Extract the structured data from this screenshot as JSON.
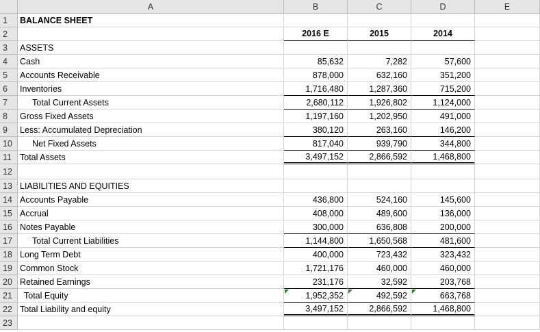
{
  "columns": [
    "A",
    "B",
    "C",
    "D",
    "E"
  ],
  "rows": [
    {
      "number": "1",
      "label": "BALANCE SHEET"
    },
    {
      "number": "2",
      "values": [
        "2016 E",
        "2015",
        "2014"
      ]
    },
    {
      "number": "3",
      "label": "ASSETS"
    },
    {
      "number": "4",
      "label": "Cash",
      "values": [
        "85,632",
        "7,282",
        "57,600"
      ]
    },
    {
      "number": "5",
      "label": "Accounts Receivable",
      "values": [
        "878,000",
        "632,160",
        "351,200"
      ]
    },
    {
      "number": "6",
      "label": "Inventories",
      "values": [
        "1,716,480",
        "1,287,360",
        "715,200"
      ]
    },
    {
      "number": "7",
      "label": "Total Current Assets",
      "values": [
        "2,680,112",
        "1,926,802",
        "1,124,000"
      ]
    },
    {
      "number": "8",
      "label": "Gross Fixed Assets",
      "values": [
        "1,197,160",
        "1,202,950",
        "491,000"
      ]
    },
    {
      "number": "9",
      "label": "Less: Accumulated Depreciation",
      "values": [
        "380,120",
        "263,160",
        "146,200"
      ]
    },
    {
      "number": "10",
      "label": "Net Fixed Assets",
      "values": [
        "817,040",
        "939,790",
        "344,800"
      ]
    },
    {
      "number": "11",
      "label": "Total Assets",
      "values": [
        "3,497,152",
        "2,866,592",
        "1,468,800"
      ]
    },
    {
      "number": "12"
    },
    {
      "number": "13",
      "label": "LIABILITIES AND EQUITIES"
    },
    {
      "number": "14",
      "label": "Accounts Payable",
      "values": [
        "436,800",
        "524,160",
        "145,600"
      ]
    },
    {
      "number": "15",
      "label": "Accrual",
      "values": [
        "408,000",
        "489,600",
        "136,000"
      ]
    },
    {
      "number": "16",
      "label": "Notes Payable",
      "values": [
        "300,000",
        "636,808",
        "200,000"
      ]
    },
    {
      "number": "17",
      "label": "Total Current Liabilities",
      "values": [
        "1,144,800",
        "1,650,568",
        "481,600"
      ]
    },
    {
      "number": "18",
      "label": "Long Term Debt",
      "values": [
        "400,000",
        "723,432",
        "323,432"
      ]
    },
    {
      "number": "19",
      "label": "Common Stock",
      "values": [
        "1,721,176",
        "460,000",
        "460,000"
      ]
    },
    {
      "number": "20",
      "label": "Retained Earnings",
      "values": [
        "231,176",
        "32,592",
        "203,768"
      ]
    },
    {
      "number": "21",
      "label": "Total Equity",
      "values": [
        "1,952,352",
        "492,592",
        "663,768"
      ]
    },
    {
      "number": "22",
      "label": "Total Liability and equity",
      "values": [
        "3,497,152",
        "2,866,592",
        "1,468,800"
      ]
    },
    {
      "number": "23"
    }
  ]
}
